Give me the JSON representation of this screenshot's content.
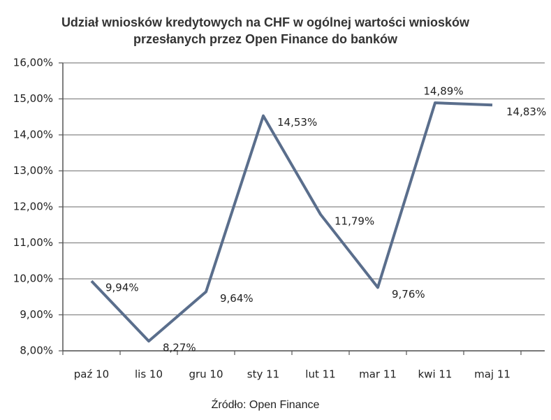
{
  "chart_data": {
    "type": "line",
    "title": [
      "Udział wniosków kredytowych na CHF w ogólnej wartości wniosków",
      "przesłanych przez Open Finance do banków"
    ],
    "categories": [
      "paź 10",
      "lis 10",
      "gru 10",
      "sty 11",
      "lut 11",
      "mar 11",
      "kwi 11",
      "maj 11"
    ],
    "values": [
      9.94,
      8.27,
      9.64,
      14.53,
      11.79,
      9.76,
      14.89,
      14.83
    ],
    "value_labels": [
      "9,94%",
      "8,27%",
      "9,64%",
      "14,53%",
      "11,79%",
      "9,76%",
      "14,89%",
      "14,83%"
    ],
    "color": "#5a6e8c",
    "ylim": [
      8,
      16
    ],
    "yticks": [
      {
        "value": 8,
        "label": "8,00%"
      },
      {
        "value": 9,
        "label": "9,00%"
      },
      {
        "value": 10,
        "label": "10,00%"
      },
      {
        "value": 11,
        "label": "11,00%"
      },
      {
        "value": 12,
        "label": "12,00%"
      },
      {
        "value": 13,
        "label": "13,00%"
      },
      {
        "value": 14,
        "label": "14,00%"
      },
      {
        "value": 15,
        "label": "15,00%"
      },
      {
        "value": 16,
        "label": "16,00%"
      }
    ],
    "grid": true,
    "source": "Źródło: Open Finance"
  }
}
